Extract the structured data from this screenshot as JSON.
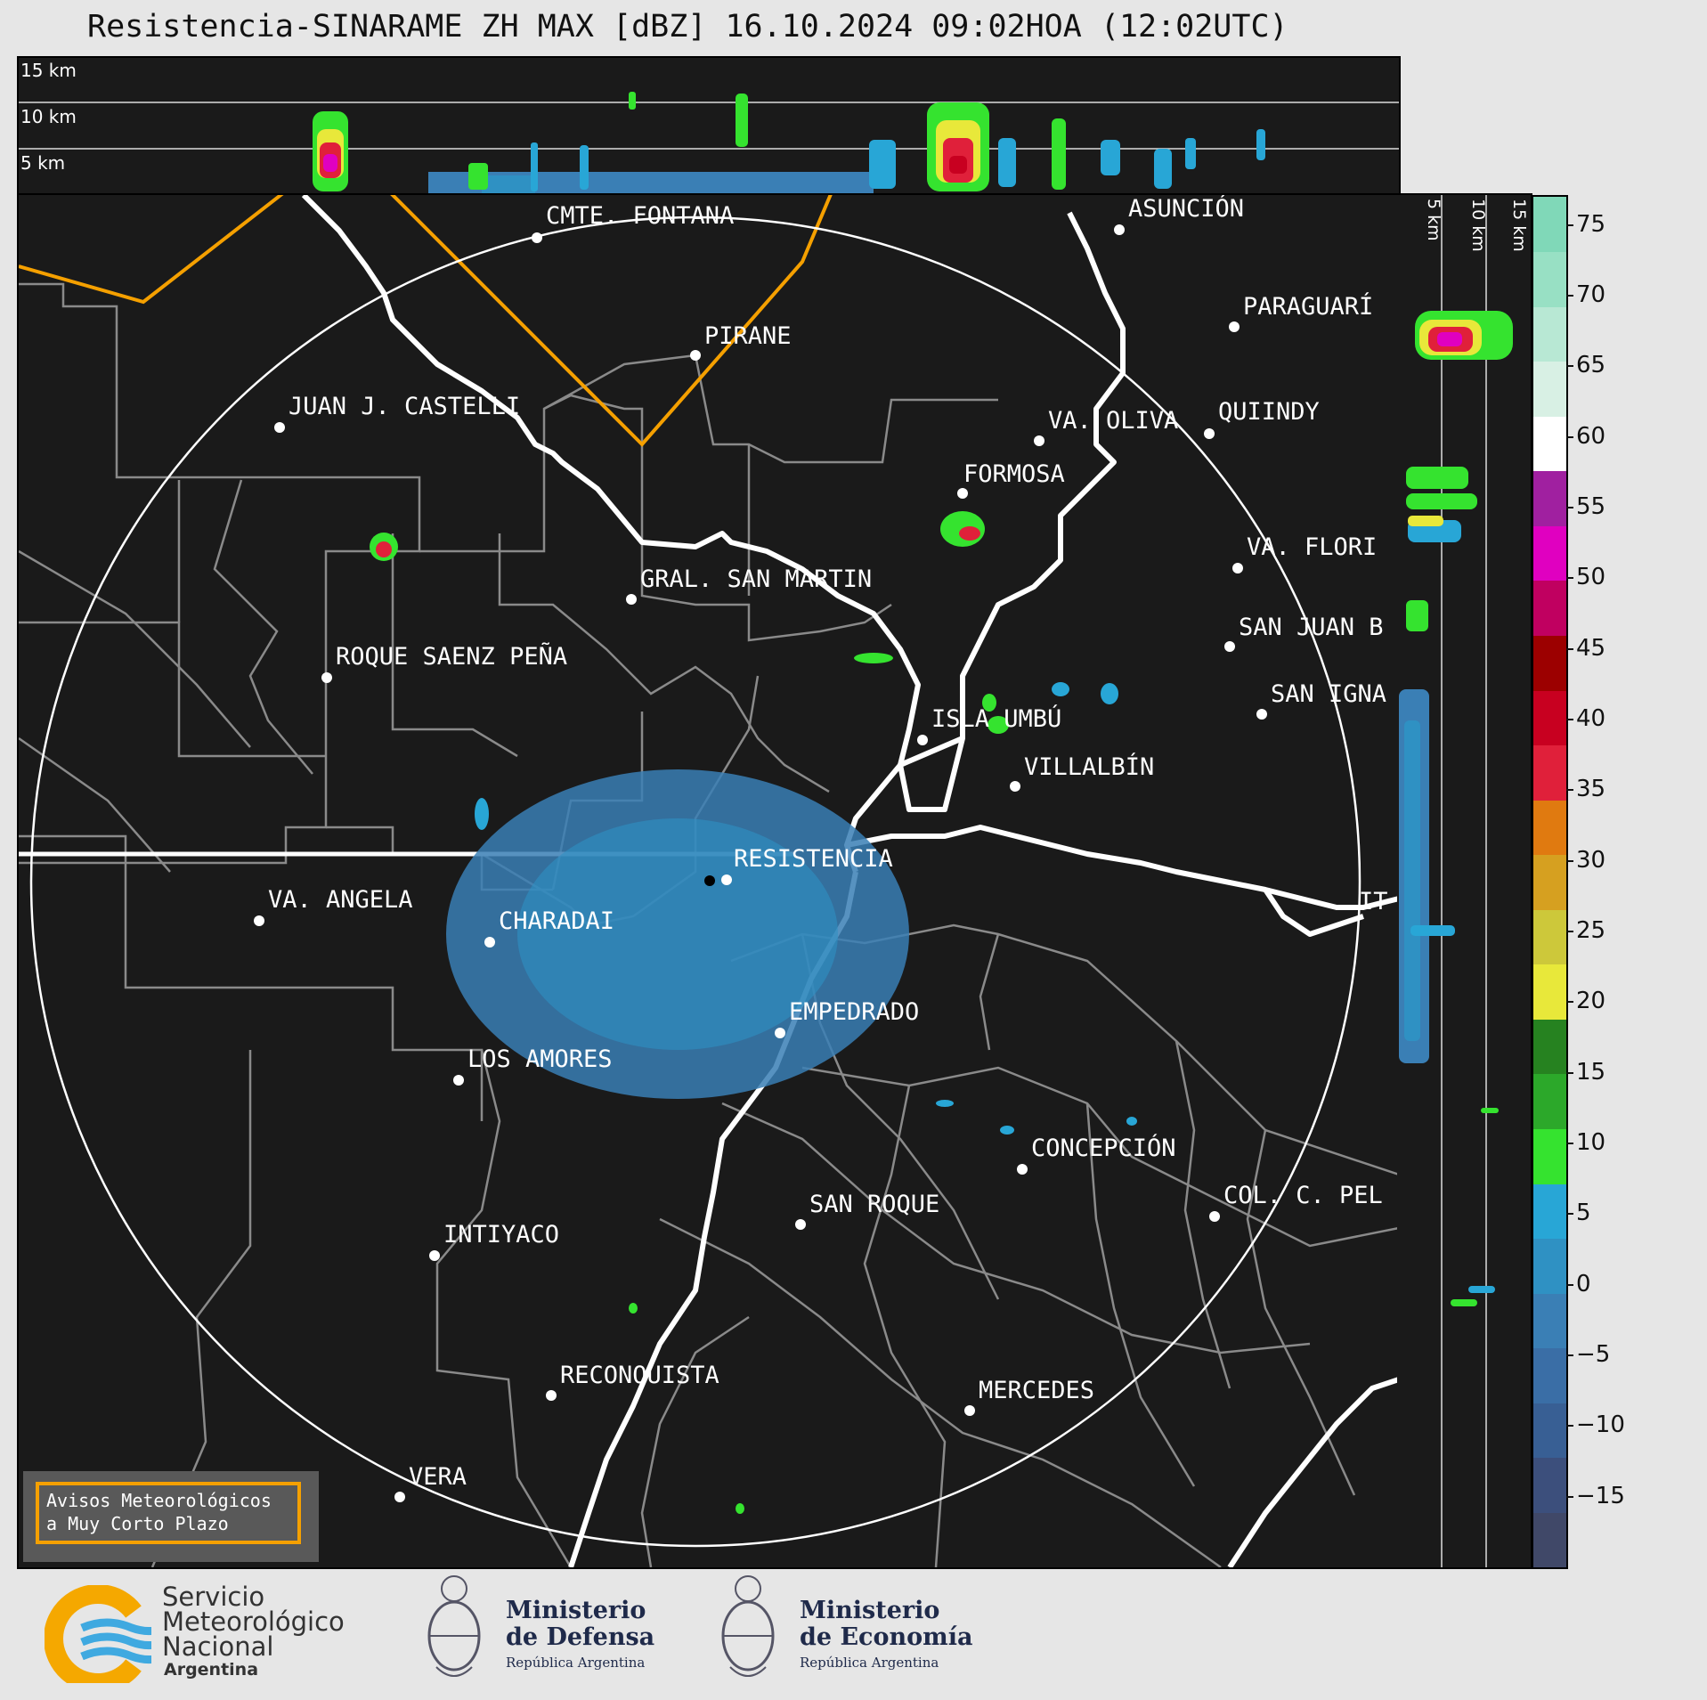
{
  "title": "Resistencia-SINARAME ZH MAX [dBZ] 16.10.2024 09:02HOA (12:02UTC)",
  "height_labels": [
    "15 km",
    "10 km",
    "5 km"
  ],
  "colorbar": {
    "ticks": [
      "75",
      "70",
      "65",
      "60",
      "55",
      "50",
      "45",
      "40",
      "35",
      "30",
      "25",
      "20",
      "15",
      "10",
      "5",
      "0",
      "−5",
      "−10",
      "−15"
    ],
    "range": [
      -20,
      77
    ],
    "colors": [
      "#404868",
      "#3c4f7c",
      "#385f94",
      "#3a6ea6",
      "#3a7fb5",
      "#2f91c3",
      "#28a6d6",
      "#35e32f",
      "#2ca82a",
      "#268220",
      "#e8e83a",
      "#cdc83a",
      "#d6a020",
      "#e07a10",
      "#e0203a",
      "#c80020",
      "#9c0000",
      "#c00060",
      "#e000c0",
      "#a020a0",
      "#ffffff",
      "#d8f0e4",
      "#b8e8d4",
      "#98e0c4",
      "#80d8b8"
    ],
    "unit": "dBZ"
  },
  "cities": [
    {
      "name": "CMTE. FONTANA"
    },
    {
      "name": "ASUNCIÓN"
    },
    {
      "name": "PARAGUARÍ"
    },
    {
      "name": "PIRANE"
    },
    {
      "name": "JUAN J. CASTELLI"
    },
    {
      "name": "VA. OLIVA"
    },
    {
      "name": "QUIINDY"
    },
    {
      "name": "FORMOSA"
    },
    {
      "name": "VA. FLORI"
    },
    {
      "name": "GRAL. SAN MARTIN"
    },
    {
      "name": "SAN JUAN B"
    },
    {
      "name": "ROQUE SAENZ PEÑA"
    },
    {
      "name": "SAN IGNA"
    },
    {
      "name": "ISLA UMBÚ"
    },
    {
      "name": "VILLALBÍN"
    },
    {
      "name": "RESISTENCIA"
    },
    {
      "name": "IT"
    },
    {
      "name": "VA. ANGELA"
    },
    {
      "name": "CHARADAI"
    },
    {
      "name": "EMPEDRADO"
    },
    {
      "name": "LOS AMORES"
    },
    {
      "name": "CONCEPCIÓN"
    },
    {
      "name": "COL. C. PEL"
    },
    {
      "name": "SAN ROQUE"
    },
    {
      "name": "INTIYACO"
    },
    {
      "name": "RECONQUISTA"
    },
    {
      "name": "MERCEDES"
    },
    {
      "name": "VERA"
    }
  ],
  "warning_box": {
    "line1": "Avisos Meteorológicos",
    "line2": "a Muy Corto Plazo"
  },
  "logos": {
    "smn": {
      "line1": "Servicio",
      "line2": "Meteorológico",
      "line3": "Nacional",
      "line4": "Argentina"
    },
    "defensa": {
      "line1": "Ministerio",
      "line2": "de Defensa",
      "line3": "República Argentina"
    },
    "economia": {
      "line1": "Ministerio",
      "line2": "de Economía",
      "line3": "República Argentina"
    }
  },
  "colors": {
    "background": "#1a1a1a",
    "range_ring": "#ffffff",
    "border_orange": "#f5a000",
    "river": "#ffffff",
    "division": "#8a8a8a"
  }
}
